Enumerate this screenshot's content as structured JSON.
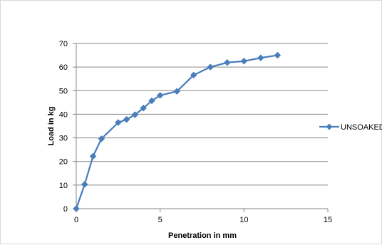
{
  "chart_data": {
    "type": "line",
    "xlabel": "Penetration in mm",
    "ylabel": "Load in kg",
    "xlim": [
      0,
      15
    ],
    "ylim": [
      0,
      70
    ],
    "x_ticks": [
      0,
      5,
      10,
      15
    ],
    "y_ticks": [
      0,
      10,
      20,
      30,
      40,
      50,
      60,
      70
    ],
    "x_tick_labels": [
      "0",
      "5",
      "10",
      "15"
    ],
    "y_tick_labels": [
      "0",
      "10",
      "20",
      "30",
      "40",
      "50",
      "60",
      "70"
    ],
    "grid": "horizontal major gridlines",
    "legend_position": "right",
    "series": [
      {
        "name": "UNSOAKED",
        "color": "#4a7ebb",
        "marker": "diamond",
        "x": [
          0,
          0.5,
          1,
          1.5,
          2.5,
          3,
          3.5,
          4,
          4.5,
          5,
          6,
          7,
          8,
          9,
          10,
          11,
          12
        ],
        "y": [
          0,
          10.3,
          22.2,
          29.6,
          36.5,
          37.8,
          39.8,
          42.6,
          45.7,
          48,
          49.7,
          56.6,
          60,
          61.9,
          62.5,
          63.9,
          65
        ]
      }
    ]
  }
}
